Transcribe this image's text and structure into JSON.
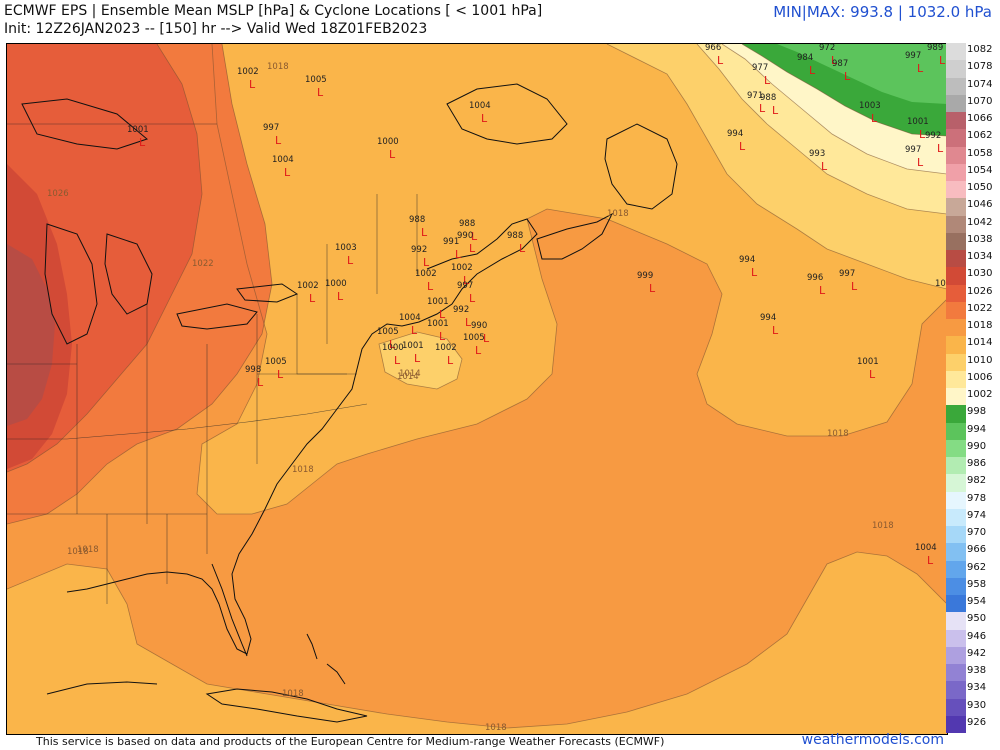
{
  "header": {
    "title": "ECMWF EPS | Ensemble Mean MSLP [hPa] & Cyclone Locations [ < 1001 hPa]",
    "init": "Init: 12Z26JAN2023 -- [150] hr --> Valid Wed 18Z01FEB2023",
    "minmax": "MIN|MAX: 993.8 | 1032.0 hPa"
  },
  "footer": {
    "attribution": "This service is based on data and products of the European Centre for Medium-range Weather Forecasts (ECMWF)",
    "brand": "weathermodels.com"
  },
  "legend": {
    "levels": [
      {
        "label": "1082",
        "color": "#dcdcdc"
      },
      {
        "label": "1078",
        "color": "#cfcfcf"
      },
      {
        "label": "1074",
        "color": "#bdbdbd"
      },
      {
        "label": "1070",
        "color": "#a9a9a9"
      },
      {
        "label": "1066",
        "color": "#b8606a"
      },
      {
        "label": "1062",
        "color": "#cc707a"
      },
      {
        "label": "1058",
        "color": "#e08890"
      },
      {
        "label": "1054",
        "color": "#f0a0a8"
      },
      {
        "label": "1050",
        "color": "#f8bcc0"
      },
      {
        "label": "1046",
        "color": "#c8a898"
      },
      {
        "label": "1042",
        "color": "#b08878"
      },
      {
        "label": "1038",
        "color": "#987060"
      },
      {
        "label": "1034",
        "color": "#b84c44"
      },
      {
        "label": "1030",
        "color": "#d24a36"
      },
      {
        "label": "1026",
        "color": "#e65d3a"
      },
      {
        "label": "1022",
        "color": "#f27a3e"
      },
      {
        "label": "1018",
        "color": "#f79a42"
      },
      {
        "label": "1014",
        "color": "#fab54a"
      },
      {
        "label": "1010",
        "color": "#fdd06a"
      },
      {
        "label": "1006",
        "color": "#ffe89a"
      },
      {
        "label": "1002",
        "color": "#fff6c8"
      },
      {
        "label": "998",
        "color": "#3aa83a"
      },
      {
        "label": "994",
        "color": "#5cc45c"
      },
      {
        "label": "990",
        "color": "#84dc84"
      },
      {
        "label": "986",
        "color": "#b2ecb2"
      },
      {
        "label": "982",
        "color": "#d6f6d6"
      },
      {
        "label": "978",
        "color": "#e6f6fe"
      },
      {
        "label": "974",
        "color": "#c8eafc"
      },
      {
        "label": "970",
        "color": "#a6d8f8"
      },
      {
        "label": "966",
        "color": "#82c0f2"
      },
      {
        "label": "962",
        "color": "#62a6ec"
      },
      {
        "label": "958",
        "color": "#4c8ee4"
      },
      {
        "label": "954",
        "color": "#3a78da"
      },
      {
        "label": "950",
        "color": "#e6e2f6"
      },
      {
        "label": "946",
        "color": "#cac0ec"
      },
      {
        "label": "942",
        "color": "#aea0e0"
      },
      {
        "label": "938",
        "color": "#9282d4"
      },
      {
        "label": "934",
        "color": "#7a68c8"
      },
      {
        "label": "930",
        "color": "#6650bc"
      },
      {
        "label": "926",
        "color": "#5238b0"
      }
    ]
  },
  "map": {
    "isobar_labels": [
      "1018",
      "1022",
      "1026",
      "1014",
      "1018",
      "1018",
      "1018",
      "1018",
      "1018",
      "1018",
      "1018",
      "1014",
      "1018"
    ],
    "cyclones": [
      {
        "p": "1002"
      },
      {
        "p": "1005"
      },
      {
        "p": "997"
      },
      {
        "p": "1004"
      },
      {
        "p": "1001"
      },
      {
        "p": "1000"
      },
      {
        "p": "1004"
      },
      {
        "p": "966"
      },
      {
        "p": "972"
      },
      {
        "p": "984"
      },
      {
        "p": "977"
      },
      {
        "p": "987"
      },
      {
        "p": "997"
      },
      {
        "p": "989"
      },
      {
        "p": "988"
      },
      {
        "p": "971"
      },
      {
        "p": "1003"
      },
      {
        "p": "1001"
      },
      {
        "p": "992"
      },
      {
        "p": "994"
      },
      {
        "p": "993"
      },
      {
        "p": "997"
      },
      {
        "p": "988"
      },
      {
        "p": "988"
      },
      {
        "p": "991"
      },
      {
        "p": "992"
      },
      {
        "p": "990"
      },
      {
        "p": "1003"
      },
      {
        "p": "1002"
      },
      {
        "p": "1000"
      },
      {
        "p": "1002"
      },
      {
        "p": "1002"
      },
      {
        "p": "997"
      },
      {
        "p": "988"
      },
      {
        "p": "1001"
      },
      {
        "p": "992"
      },
      {
        "p": "1001"
      },
      {
        "p": "1004"
      },
      {
        "p": "990"
      },
      {
        "p": "1005"
      },
      {
        "p": "1005"
      },
      {
        "p": "1001"
      },
      {
        "p": "1000"
      },
      {
        "p": "1002"
      },
      {
        "p": "998"
      },
      {
        "p": "1005"
      },
      {
        "p": "999"
      },
      {
        "p": "994"
      },
      {
        "p": "996"
      },
      {
        "p": "997"
      },
      {
        "p": "1004"
      },
      {
        "p": "994"
      },
      {
        "p": "1001"
      },
      {
        "p": "1004"
      }
    ]
  }
}
